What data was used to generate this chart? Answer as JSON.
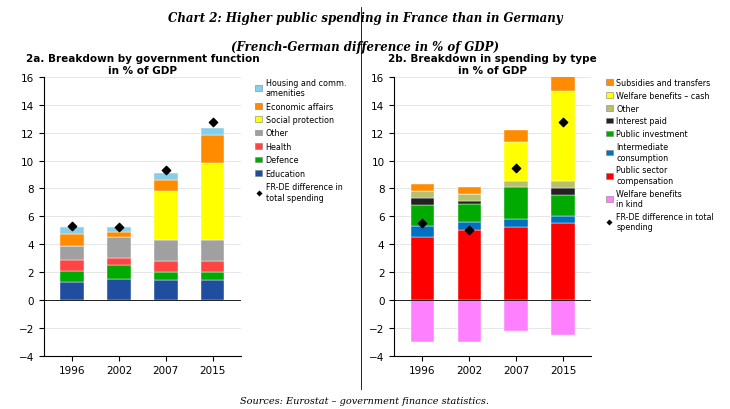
{
  "title_line1": "Chart 2: Higher public spending in France than in Germany",
  "title_line2": "(French-German difference in % of GDP)",
  "subtitle_a": "2a. Breakdown by government function\nin % of GDP",
  "subtitle_b": "2b. Breakdown in spending by type\nin % of GDP",
  "source": "Sources: Eurostat – government finance statistics.",
  "years": [
    "1996",
    "2002",
    "2007",
    "2015"
  ],
  "chart_a": {
    "categories": [
      "Education",
      "Defence",
      "Health",
      "Other",
      "Social protection",
      "Economic affairs",
      "Housing and comm.\namenities"
    ],
    "colors": [
      "#1F4E9F",
      "#00AA00",
      "#FF4444",
      "#A0A0A0",
      "#FFFF00",
      "#FF8C00",
      "#87CEEB"
    ],
    "data": {
      "Education": [
        1.3,
        1.5,
        1.4,
        1.4
      ],
      "Defence": [
        0.8,
        1.0,
        0.6,
        0.6
      ],
      "Health": [
        0.8,
        0.5,
        0.8,
        0.8
      ],
      "Other": [
        1.0,
        1.5,
        1.5,
        1.5
      ],
      "Social protection": [
        0.0,
        0.0,
        3.5,
        5.5
      ],
      "Economic affairs": [
        0.8,
        0.4,
        0.8,
        2.0
      ],
      "Housing and comm.\namenities": [
        0.5,
        0.3,
        0.5,
        0.5
      ]
    },
    "diamonds": [
      5.3,
      5.2,
      9.3,
      12.8
    ],
    "ylim": [
      -4,
      16
    ],
    "yticks": [
      -4,
      -2,
      0,
      2,
      4,
      6,
      8,
      10,
      12,
      14,
      16
    ]
  },
  "chart_b": {
    "categories_pos": [
      "Public sector\ncompensation",
      "Intermediate\nconsumption",
      "Public investment",
      "Interest paid",
      "Other",
      "Welfare benefits – cash",
      "Subsidies and transfers"
    ],
    "categories_neg": [
      "Welfare benefits\nin kind"
    ],
    "colors_pos": [
      "#FF0000",
      "#0070C0",
      "#00AA00",
      "#222222",
      "#B8C070",
      "#FFFF00",
      "#FF8C00"
    ],
    "colors_neg": [
      "#FF80FF"
    ],
    "data_pos": {
      "Public sector\ncompensation": [
        4.5,
        5.0,
        5.2,
        5.5
      ],
      "Intermediate\nconsumption": [
        0.8,
        0.6,
        0.6,
        0.5
      ],
      "Public investment": [
        1.5,
        1.3,
        2.5,
        1.5
      ],
      "Interest paid": [
        0.5,
        0.2,
        -0.2,
        0.5
      ],
      "Other": [
        0.5,
        0.5,
        0.4,
        0.5
      ],
      "Welfare benefits – cash": [
        0.0,
        0.0,
        2.8,
        6.5
      ],
      "Subsidies and transfers": [
        0.5,
        0.5,
        0.9,
        2.5
      ]
    },
    "data_neg": {
      "Welfare benefits\nin kind": [
        -3.0,
        -3.0,
        -2.2,
        -2.5
      ]
    },
    "diamonds": [
      5.5,
      5.0,
      9.5,
      12.8
    ],
    "ylim": [
      -4,
      16
    ],
    "yticks": [
      -4,
      -2,
      0,
      2,
      4,
      6,
      8,
      10,
      12,
      14,
      16
    ]
  },
  "bar_width": 0.5
}
